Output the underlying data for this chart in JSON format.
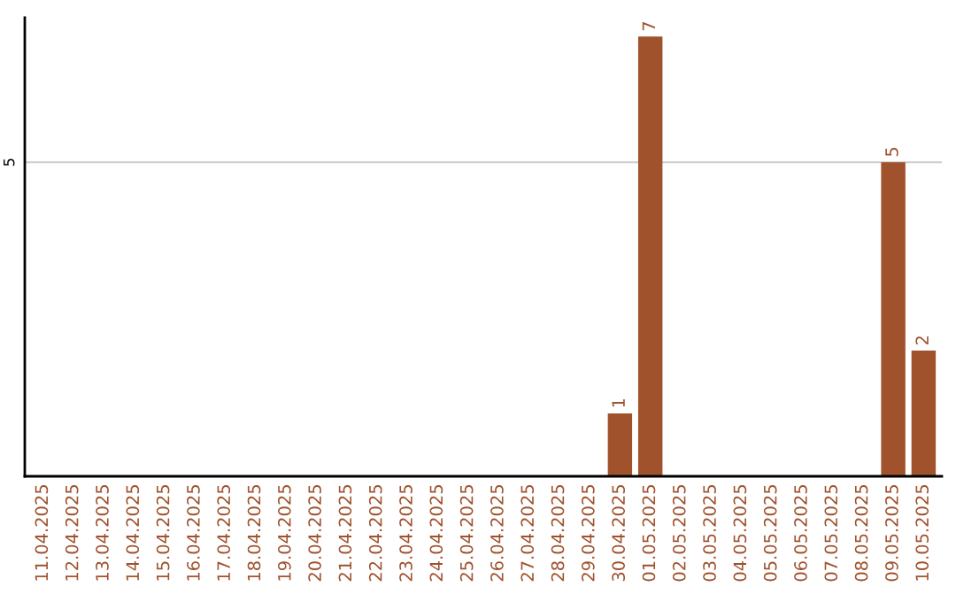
{
  "chart_data": {
    "type": "bar",
    "categories": [
      "11.04.2025",
      "12.04.2025",
      "13.04.2025",
      "14.04.2025",
      "15.04.2025",
      "16.04.2025",
      "17.04.2025",
      "18.04.2025",
      "19.04.2025",
      "20.04.2025",
      "21.04.2025",
      "22.04.2025",
      "23.04.2025",
      "24.04.2025",
      "25.04.2025",
      "26.04.2025",
      "27.04.2025",
      "28.04.2025",
      "29.04.2025",
      "30.04.2025",
      "01.05.2025",
      "02.05.2025",
      "03.05.2025",
      "04.05.2025",
      "05.05.2025",
      "06.05.2025",
      "07.05.2025",
      "08.05.2025",
      "09.05.2025",
      "10.05.2025"
    ],
    "values": [
      null,
      null,
      null,
      null,
      null,
      null,
      null,
      null,
      null,
      null,
      null,
      null,
      null,
      null,
      null,
      null,
      null,
      null,
      null,
      1,
      7,
      null,
      null,
      null,
      null,
      null,
      null,
      null,
      5,
      2
    ],
    "value_labels": [
      null,
      null,
      null,
      null,
      null,
      null,
      null,
      null,
      null,
      null,
      null,
      null,
      null,
      null,
      null,
      null,
      null,
      null,
      null,
      "1",
      "7",
      null,
      null,
      null,
      null,
      null,
      null,
      null,
      "5",
      "2"
    ],
    "color": "#a0522d",
    "ref_lines": [
      {
        "axis": "y",
        "value": 5,
        "label": "5",
        "color": "#cccccc"
      }
    ]
  }
}
